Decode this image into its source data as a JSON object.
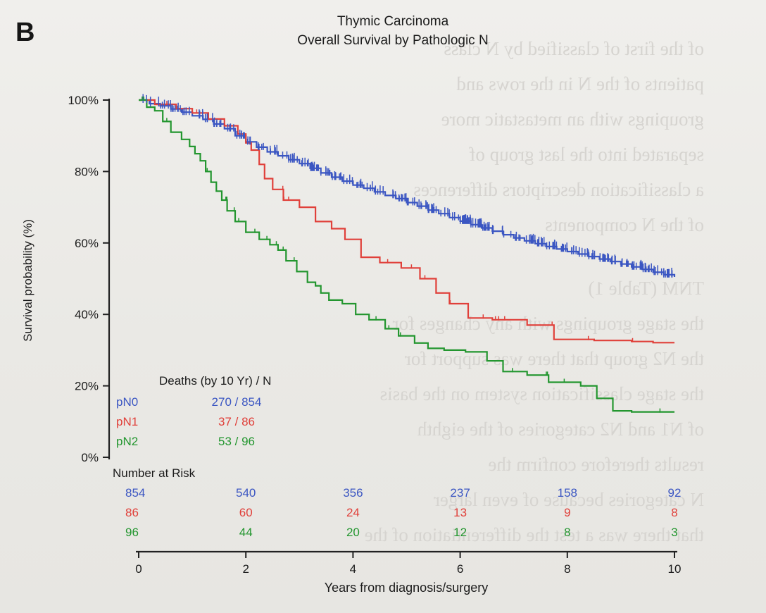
{
  "panel_label": "B",
  "chart_data": {
    "type": "line",
    "title": "Thymic Carcinoma",
    "subtitle": "Overall Survival by Pathologic N",
    "xlabel": "Years from diagnosis/surgery",
    "ylabel": "Survival probability (%)",
    "xlim": [
      0,
      10
    ],
    "ylim": [
      0,
      100
    ],
    "x_ticks": [
      0,
      2,
      4,
      6,
      8,
      10
    ],
    "x_tick_labels": [
      "0",
      "2",
      "4",
      "6",
      "8",
      "10"
    ],
    "y_ticks": [
      0,
      20,
      40,
      60,
      80,
      100
    ],
    "y_tick_labels": [
      "0%",
      "20%",
      "40%",
      "60%",
      "80%",
      "100%"
    ],
    "series": [
      {
        "name": "pN0",
        "color": "#3b56c2",
        "steps": [
          [
            0,
            100
          ],
          [
            0.2,
            99
          ],
          [
            0.4,
            98.4
          ],
          [
            0.6,
            97.5
          ],
          [
            0.8,
            96.6
          ],
          [
            1.0,
            95.6
          ],
          [
            1.2,
            94.6
          ],
          [
            1.4,
            93.3
          ],
          [
            1.6,
            92
          ],
          [
            1.8,
            90
          ],
          [
            2.0,
            88.3
          ],
          [
            2.2,
            86.8
          ],
          [
            2.4,
            85.5
          ],
          [
            2.6,
            84.4
          ],
          [
            2.8,
            83.3
          ],
          [
            3.0,
            82.2
          ],
          [
            3.2,
            80.9
          ],
          [
            3.4,
            79.6
          ],
          [
            3.6,
            78.4
          ],
          [
            3.8,
            77.3
          ],
          [
            4.0,
            76.2
          ],
          [
            4.2,
            75.3
          ],
          [
            4.4,
            74.3
          ],
          [
            4.6,
            73.3
          ],
          [
            4.8,
            72.4
          ],
          [
            5.0,
            71.3
          ],
          [
            5.2,
            70.3
          ],
          [
            5.4,
            69.2
          ],
          [
            5.6,
            68.2
          ],
          [
            5.8,
            67.1
          ],
          [
            6.0,
            66.1
          ],
          [
            6.2,
            65.1
          ],
          [
            6.4,
            64.2
          ],
          [
            6.6,
            63.3
          ],
          [
            6.8,
            62.3
          ],
          [
            7.0,
            61.4
          ],
          [
            7.2,
            60.6
          ],
          [
            7.4,
            59.8
          ],
          [
            7.6,
            59.0
          ],
          [
            7.8,
            58.3
          ],
          [
            8.0,
            57.6
          ],
          [
            8.2,
            56.9
          ],
          [
            8.4,
            56.2
          ],
          [
            8.6,
            55.5
          ],
          [
            8.8,
            54.8
          ],
          [
            9.0,
            54.1
          ],
          [
            9.2,
            53.3
          ],
          [
            9.4,
            52.6
          ],
          [
            9.6,
            51.8
          ],
          [
            9.8,
            51.1
          ],
          [
            10.0,
            50.5
          ]
        ]
      },
      {
        "name": "pN1",
        "color": "#e0403a",
        "steps": [
          [
            0,
            100
          ],
          [
            0.3,
            98.8
          ],
          [
            0.7,
            97.6
          ],
          [
            1.0,
            96.4
          ],
          [
            1.3,
            94.7
          ],
          [
            1.6,
            92.8
          ],
          [
            1.85,
            90.5
          ],
          [
            2.0,
            88
          ],
          [
            2.1,
            86
          ],
          [
            2.25,
            82
          ],
          [
            2.35,
            78
          ],
          [
            2.5,
            75
          ],
          [
            2.7,
            72
          ],
          [
            3.0,
            70
          ],
          [
            3.3,
            66
          ],
          [
            3.6,
            64
          ],
          [
            3.85,
            61
          ],
          [
            4.15,
            56
          ],
          [
            4.5,
            54.5
          ],
          [
            4.9,
            53
          ],
          [
            5.25,
            50
          ],
          [
            5.55,
            46
          ],
          [
            5.8,
            43
          ],
          [
            6.15,
            39
          ],
          [
            6.6,
            38.5
          ],
          [
            7.25,
            37
          ],
          [
            7.75,
            33
          ],
          [
            8.5,
            32.7
          ],
          [
            9.2,
            32.4
          ],
          [
            9.6,
            32.1
          ],
          [
            10.0,
            32.1
          ]
        ]
      },
      {
        "name": "pN2",
        "color": "#23962f",
        "steps": [
          [
            0,
            100
          ],
          [
            0.15,
            98
          ],
          [
            0.3,
            97
          ],
          [
            0.45,
            94
          ],
          [
            0.6,
            91
          ],
          [
            0.8,
            89
          ],
          [
            0.95,
            87
          ],
          [
            1.05,
            85
          ],
          [
            1.15,
            83
          ],
          [
            1.25,
            80
          ],
          [
            1.35,
            77
          ],
          [
            1.45,
            74.5
          ],
          [
            1.55,
            72
          ],
          [
            1.65,
            69
          ],
          [
            1.8,
            66
          ],
          [
            2.0,
            63
          ],
          [
            2.25,
            61
          ],
          [
            2.45,
            59.5
          ],
          [
            2.6,
            58
          ],
          [
            2.75,
            55
          ],
          [
            2.95,
            52
          ],
          [
            3.15,
            49
          ],
          [
            3.3,
            48
          ],
          [
            3.4,
            46
          ],
          [
            3.55,
            44
          ],
          [
            3.8,
            43
          ],
          [
            4.05,
            40
          ],
          [
            4.3,
            38.5
          ],
          [
            4.6,
            36
          ],
          [
            4.85,
            34
          ],
          [
            5.15,
            32
          ],
          [
            5.4,
            30.5
          ],
          [
            5.7,
            30
          ],
          [
            6.1,
            29.5
          ],
          [
            6.5,
            27
          ],
          [
            6.8,
            24
          ],
          [
            7.25,
            23
          ],
          [
            7.65,
            21
          ],
          [
            8.25,
            20
          ],
          [
            8.55,
            16.5
          ],
          [
            8.85,
            13
          ],
          [
            9.2,
            12.7
          ],
          [
            10.0,
            12.7
          ]
        ]
      }
    ],
    "deaths_table": {
      "header": "Deaths (by 10 Yr) / N",
      "rows": [
        {
          "label": "pN0",
          "value": "270 / 854"
        },
        {
          "label": "pN1",
          "value": "37 / 86"
        },
        {
          "label": "pN2",
          "value": "53 / 96"
        }
      ]
    },
    "number_at_risk": {
      "header": "Number at Risk",
      "times": [
        0,
        2,
        4,
        6,
        8,
        10
      ],
      "rows": [
        {
          "series": "pN0",
          "values": [
            "854",
            "540",
            "356",
            "237",
            "158",
            "92"
          ]
        },
        {
          "series": "pN1",
          "values": [
            "86",
            "60",
            "24",
            "13",
            "9",
            "8"
          ]
        },
        {
          "series": "pN2",
          "values": [
            "96",
            "44",
            "20",
            "12",
            "8",
            "3"
          ]
        }
      ]
    }
  }
}
